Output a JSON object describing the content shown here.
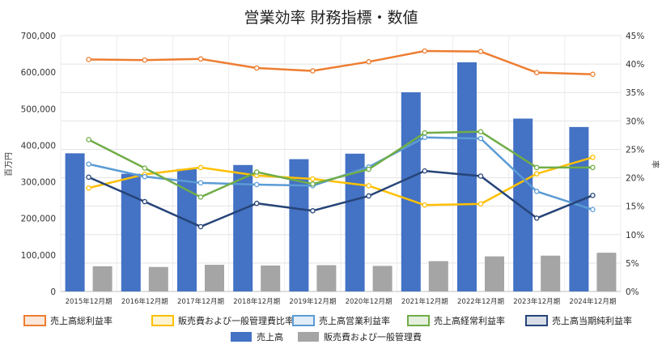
{
  "chart_data": {
    "type": "bar",
    "title": "営業効率 財務指標・数値",
    "ylabel_left": "百万円",
    "ylabel_right": "率",
    "categories": [
      "2015年12月期",
      "2016年12月期",
      "2017年12月期",
      "2018年12月期",
      "2019年12月期",
      "2020年12月期",
      "2021年12月期",
      "2022年12月期",
      "2023年12月期",
      "2024年12月期"
    ],
    "y_left": {
      "min": 0,
      "max": 700000,
      "ticks": [
        "0",
        "100,000",
        "200,000",
        "300,000",
        "400,000",
        "500,000",
        "600,000",
        "700,000"
      ]
    },
    "y_right": {
      "min": 0,
      "max": 45,
      "ticks": [
        "0%",
        "5%",
        "10%",
        "15%",
        "20%",
        "25%",
        "30%",
        "35%",
        "40%",
        "45%"
      ]
    },
    "grid": true,
    "legend_position": "bottom",
    "bar_series": [
      {
        "name": "売上高",
        "color": "#4472C4",
        "values": [
          378000,
          322000,
          335000,
          346000,
          362000,
          377000,
          545000,
          627000,
          473000,
          450000
        ]
      },
      {
        "name": "販売費および一般管理費",
        "color": "#A5A5A5",
        "values": [
          69000,
          67000,
          73000,
          71000,
          72000,
          70000,
          83000,
          96000,
          98000,
          106000
        ]
      }
    ],
    "line_series": [
      {
        "name": "売上高総利益率",
        "color": "#ED7D31",
        "values": [
          40.8,
          40.7,
          40.9,
          39.3,
          38.8,
          40.4,
          42.3,
          42.2,
          38.5,
          38.2
        ]
      },
      {
        "name": "販売費および一般管理費比率",
        "color": "#FFC000",
        "values": [
          18.2,
          20.6,
          21.8,
          20.4,
          19.8,
          18.6,
          15.2,
          15.4,
          20.7,
          23.6
        ]
      },
      {
        "name": "売上高営業利益率",
        "color": "#5B9BD5",
        "values": [
          22.4,
          20.2,
          19.1,
          18.8,
          18.6,
          21.9,
          27.1,
          26.9,
          17.6,
          14.4
        ]
      },
      {
        "name": "売上高経常利益率",
        "color": "#70AD47",
        "values": [
          26.7,
          21.7,
          16.6,
          21.0,
          18.9,
          21.5,
          27.9,
          28.1,
          21.8,
          21.8
        ]
      },
      {
        "name": "売上高当期純利益率",
        "color": "#264478",
        "values": [
          20.1,
          15.8,
          11.4,
          15.5,
          14.2,
          16.8,
          21.2,
          20.3,
          12.9,
          16.9
        ]
      }
    ]
  }
}
